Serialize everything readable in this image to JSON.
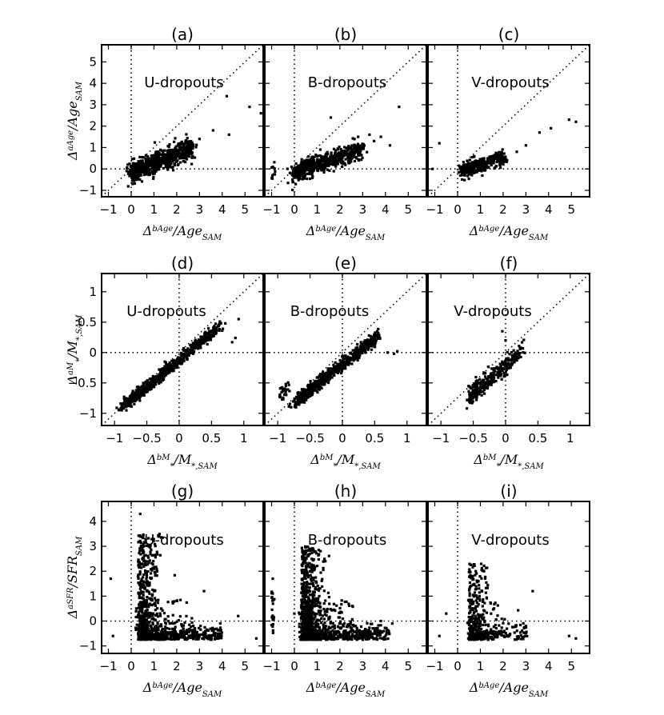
{
  "chart_data": {
    "type": "scatter",
    "panels": [
      {
        "id": "a",
        "title": "(a)",
        "label": "U-dropouts",
        "row": 0,
        "col": 0,
        "xlim": [
          -1.3,
          5.8
        ],
        "ylim": [
          -1.3,
          5.8
        ],
        "xticks": [
          -1,
          0,
          1,
          2,
          3,
          4,
          5
        ],
        "yticks": [
          -1,
          0,
          1,
          2,
          3,
          4,
          5
        ],
        "yticks_visible": true,
        "xlabel": "Δ^bAge/Age_SAM",
        "ylabel": "Δ^aAge/Age_SAM",
        "zero_x": 0,
        "zero_y": 0,
        "diagonal": true,
        "clusters": [
          {
            "x0": 0.0,
            "x1": 2.7,
            "slope": 0.42,
            "b": -0.15,
            "spread": 0.25,
            "n": 650
          }
        ],
        "extra_points": [
          [
            4.2,
            3.4
          ],
          [
            4.3,
            1.6
          ],
          [
            5.2,
            2.9
          ],
          [
            5.7,
            2.6
          ],
          [
            3.6,
            1.8
          ],
          [
            3.0,
            1.4
          ],
          [
            -0.2,
            -0.1
          ],
          [
            0.1,
            0.05
          ],
          [
            -0.15,
            0.2
          ]
        ]
      },
      {
        "id": "b",
        "title": "(b)",
        "label": "B-dropouts",
        "row": 0,
        "col": 1,
        "xlim": [
          -1.3,
          5.8
        ],
        "ylim": [
          -1.3,
          5.8
        ],
        "xticks": [
          -1,
          0,
          1,
          2,
          3,
          4,
          5
        ],
        "yticks": [],
        "yticks_visible": false,
        "xlabel": "Δ^bAge/Age_SAM",
        "ylabel": "",
        "zero_x": 0,
        "zero_y": 0,
        "diagonal": true,
        "clusters": [
          {
            "x0": 0.0,
            "x1": 3.0,
            "slope": 0.38,
            "b": -0.2,
            "spread": 0.2,
            "n": 700
          },
          {
            "x0": -1.0,
            "x1": -0.85,
            "slope": 0.0,
            "b": -0.05,
            "spread": 0.25,
            "n": 12
          }
        ],
        "extra_points": [
          [
            3.3,
            1.6
          ],
          [
            3.5,
            1.3
          ],
          [
            3.8,
            1.5
          ],
          [
            4.2,
            1.1
          ],
          [
            4.6,
            2.9
          ],
          [
            1.6,
            2.4
          ],
          [
            2.8,
            1.5
          ]
        ]
      },
      {
        "id": "c",
        "title": "(c)",
        "label": "V-dropouts",
        "row": 0,
        "col": 2,
        "xlim": [
          -1.3,
          5.8
        ],
        "ylim": [
          -1.3,
          5.8
        ],
        "xticks": [
          -1,
          0,
          1,
          2,
          3,
          4,
          5
        ],
        "yticks": [],
        "yticks_visible": false,
        "xlabel": "Δ^bAge/Age_SAM",
        "ylabel": "",
        "zero_x": 0,
        "zero_y": 0,
        "diagonal": true,
        "clusters": [
          {
            "x0": 0.2,
            "x1": 2.1,
            "slope": 0.35,
            "b": -0.15,
            "spread": 0.18,
            "n": 350
          }
        ],
        "extra_points": [
          [
            -1.1,
            0.0
          ],
          [
            -0.8,
            1.2
          ],
          [
            2.6,
            0.8
          ],
          [
            3.6,
            1.7
          ],
          [
            4.1,
            1.9
          ],
          [
            4.9,
            2.3
          ],
          [
            5.2,
            2.2
          ],
          [
            3.0,
            1.1
          ]
        ]
      },
      {
        "id": "d",
        "title": "(d)",
        "label": "U-dropouts",
        "row": 1,
        "col": 0,
        "xlim": [
          -1.2,
          1.3
        ],
        "ylim": [
          -1.2,
          1.3
        ],
        "xticks": [
          -1.0,
          -0.5,
          0.0,
          0.5,
          1.0
        ],
        "yticks": [
          -1.0,
          -0.5,
          0.0,
          0.5,
          1.0
        ],
        "yticks_visible": true,
        "xlabel": "Δ^bM_*/M_*,SAM",
        "ylabel": "Δ^aM_*/M_*,SAM",
        "zero_x": 0,
        "zero_y": 0,
        "diagonal": true,
        "clusters": [
          {
            "x0": -0.85,
            "x1": 0.6,
            "slope": 0.88,
            "b": -0.12,
            "spread": 0.05,
            "n": 700
          }
        ],
        "extra_points": [
          [
            0.82,
            0.17
          ],
          [
            0.87,
            0.24
          ],
          [
            0.92,
            0.55
          ],
          [
            0.62,
            0.36
          ],
          [
            0.53,
            0.41
          ]
        ]
      },
      {
        "id": "e",
        "title": "(e)",
        "label": "B-dropouts",
        "row": 1,
        "col": 1,
        "xlim": [
          -1.2,
          1.3
        ],
        "ylim": [
          -1.2,
          1.3
        ],
        "xticks": [
          -1.0,
          -0.5,
          0.0,
          0.5,
          1.0
        ],
        "yticks": [],
        "yticks_visible": false,
        "xlabel": "Δ^bM_*/M_*,SAM",
        "ylabel": "",
        "zero_x": 0,
        "zero_y": 0,
        "diagonal": true,
        "clusters": [
          {
            "x0": -0.7,
            "x1": 0.55,
            "slope": 0.85,
            "b": -0.2,
            "spread": 0.05,
            "n": 750
          },
          {
            "x0": -0.98,
            "x1": -0.78,
            "slope": 1.2,
            "b": 0.45,
            "spread": 0.06,
            "n": 30
          }
        ],
        "extra_points": [
          [
            0.7,
            0.0
          ],
          [
            0.8,
            -0.02
          ],
          [
            0.85,
            0.02
          ]
        ]
      },
      {
        "id": "f",
        "title": "(f)",
        "label": "V-dropouts",
        "row": 1,
        "col": 2,
        "xlim": [
          -1.2,
          1.3
        ],
        "ylim": [
          -1.2,
          1.3
        ],
        "xticks": [
          -1.0,
          -0.5,
          0.0,
          0.5,
          1.0
        ],
        "yticks": [],
        "yticks_visible": false,
        "xlabel": "Δ^bM_*/M_*,SAM",
        "ylabel": "",
        "zero_x": 0,
        "zero_y": 0,
        "diagonal": true,
        "clusters": [
          {
            "x0": -0.55,
            "x1": 0.25,
            "slope": 0.9,
            "b": -0.22,
            "spread": 0.08,
            "n": 320
          }
        ],
        "extra_points": [
          [
            -0.05,
            0.35
          ],
          [
            0.0,
            0.2
          ],
          [
            -0.55,
            -0.72
          ],
          [
            -0.5,
            -0.75
          ],
          [
            -0.05,
            -0.15
          ]
        ]
      },
      {
        "id": "g",
        "title": "(g)",
        "label": "U-dropouts",
        "row": 2,
        "col": 0,
        "xlim": [
          -1.3,
          5.8
        ],
        "ylim": [
          -1.3,
          4.8
        ],
        "xticks": [
          -1,
          0,
          1,
          2,
          3,
          4,
          5
        ],
        "yticks": [
          -1,
          0,
          1,
          2,
          3,
          4
        ],
        "yticks_visible": true,
        "xlabel": "Δ^bAge/Age_SAM",
        "ylabel": "Δ^aSFR/SFR_SAM",
        "zero_x": 0,
        "zero_y": 0,
        "diagonal": false,
        "l_shape": {
          "x0": 0.2,
          "xmax": 3.8,
          "ytop": 3.5,
          "n": 900
        },
        "extra_points": [
          [
            -0.9,
            1.7
          ],
          [
            -0.8,
            -0.6
          ],
          [
            0.4,
            4.3
          ],
          [
            5.5,
            -0.7
          ],
          [
            4.7,
            0.2
          ],
          [
            3.2,
            1.2
          ],
          [
            2.8,
            -0.3
          ]
        ]
      },
      {
        "id": "h",
        "title": "(h)",
        "label": "B-dropouts",
        "row": 2,
        "col": 1,
        "xlim": [
          -1.3,
          5.8
        ],
        "ylim": [
          -1.3,
          4.8
        ],
        "xticks": [
          -1,
          0,
          1,
          2,
          3,
          4,
          5
        ],
        "yticks": [],
        "yticks_visible": false,
        "xlabel": "Δ^bAge/Age_SAM",
        "ylabel": "",
        "zero_x": 0,
        "zero_y": 0,
        "diagonal": false,
        "l_shape": {
          "x0": 0.2,
          "xmax": 4.0,
          "ytop": 3.0,
          "n": 1200
        },
        "vert_strip": {
          "x": -0.95,
          "y0": -0.8,
          "y1": 1.7,
          "n": 25
        },
        "extra_points": [
          [
            4.3,
            -0.1
          ],
          [
            3.8,
            0.0
          ],
          [
            0.0,
            0.3
          ]
        ]
      },
      {
        "id": "i",
        "title": "(i)",
        "label": "V-dropouts",
        "row": 2,
        "col": 2,
        "xlim": [
          -1.3,
          5.8
        ],
        "ylim": [
          -1.3,
          4.8
        ],
        "xticks": [
          -1,
          0,
          1,
          2,
          3,
          4,
          5
        ],
        "yticks": [],
        "yticks_visible": false,
        "xlabel": "Δ^bAge/Age_SAM",
        "ylabel": "",
        "zero_x": 0,
        "zero_y": 0,
        "diagonal": false,
        "l_shape": {
          "x0": 0.4,
          "xmax": 2.9,
          "ytop": 2.3,
          "n": 450
        },
        "extra_points": [
          [
            -0.8,
            -0.6
          ],
          [
            -0.5,
            0.3
          ],
          [
            3.3,
            1.2
          ],
          [
            4.9,
            -0.6
          ],
          [
            5.2,
            -0.7
          ],
          [
            3.0,
            -0.2
          ]
        ]
      }
    ]
  }
}
